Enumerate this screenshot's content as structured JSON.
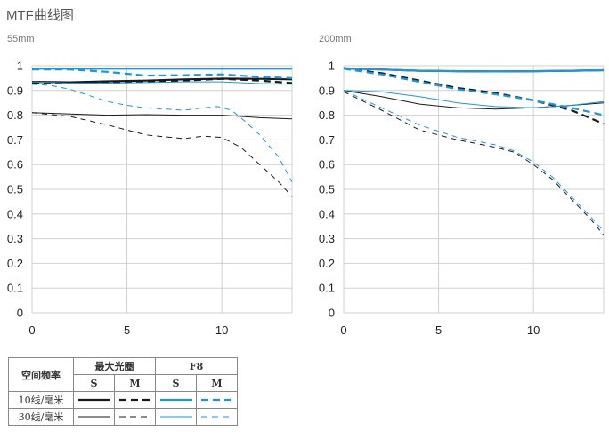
{
  "page_title": "MTF曲线图",
  "colors": {
    "black": "#1a1a1a",
    "blue": "#1e96dc",
    "grid": "#d0d0d0"
  },
  "legend": {
    "header_spatial": "空间频率",
    "header_max_aperture": "最大光圈",
    "header_f8": "F8",
    "sub_s": "S",
    "sub_m": "M",
    "row_10": "10线/毫米",
    "row_30": "30线/毫米"
  },
  "chart_data": [
    {
      "type": "line",
      "title": "55mm",
      "xlim": [
        0,
        13.7
      ],
      "ylim": [
        0,
        1
      ],
      "xticks": [
        0,
        5,
        10
      ],
      "yticks": [
        0,
        0.1,
        0.2,
        0.3,
        0.4,
        0.5,
        0.6,
        0.7,
        0.8,
        0.9,
        1
      ],
      "ytick_labels": [
        "0",
        "0.1",
        "0.2",
        "0.3",
        "0.4",
        "0.5",
        "0.6",
        "0.7",
        "0.8",
        "0.9",
        "1"
      ],
      "grid": true,
      "series": [
        {
          "aperture": "max",
          "freq": 10,
          "dir": "S",
          "color": "#1a1a1a",
          "style": "solid",
          "weight": "thick",
          "x": [
            0,
            2,
            4,
            6,
            8,
            10,
            12,
            13.7
          ],
          "y": [
            0.935,
            0.933,
            0.937,
            0.94,
            0.945,
            0.948,
            0.947,
            0.945
          ]
        },
        {
          "aperture": "max",
          "freq": 10,
          "dir": "M",
          "color": "#1a1a1a",
          "style": "dashed",
          "weight": "thick",
          "x": [
            0,
            2,
            4,
            6,
            8,
            10,
            12,
            13.7
          ],
          "y": [
            0.93,
            0.93,
            0.932,
            0.935,
            0.94,
            0.947,
            0.94,
            0.93
          ]
        },
        {
          "aperture": "max",
          "freq": 30,
          "dir": "S",
          "color": "#1a1a1a",
          "style": "solid",
          "weight": "thin",
          "x": [
            0,
            2,
            4,
            6,
            8,
            10,
            12,
            13.7
          ],
          "y": [
            0.81,
            0.805,
            0.8,
            0.802,
            0.8,
            0.8,
            0.79,
            0.785
          ]
        },
        {
          "aperture": "max",
          "freq": 30,
          "dir": "M",
          "color": "#1a1a1a",
          "style": "dashed",
          "weight": "thin",
          "x": [
            0,
            2,
            4,
            6,
            8,
            9,
            10,
            11,
            12,
            13,
            13.7
          ],
          "y": [
            0.81,
            0.795,
            0.76,
            0.72,
            0.705,
            0.715,
            0.71,
            0.67,
            0.6,
            0.53,
            0.47
          ]
        },
        {
          "aperture": "F8",
          "freq": 10,
          "dir": "S",
          "color": "#1e96dc",
          "style": "solid",
          "weight": "thick",
          "x": [
            0,
            2,
            4,
            6,
            8,
            10,
            12,
            13.7
          ],
          "y": [
            0.988,
            0.988,
            0.988,
            0.988,
            0.988,
            0.988,
            0.988,
            0.988
          ]
        },
        {
          "aperture": "F8",
          "freq": 10,
          "dir": "M",
          "color": "#1e96dc",
          "style": "dashed",
          "weight": "thick",
          "x": [
            0,
            2,
            4,
            6,
            8,
            10,
            12,
            13.7
          ],
          "y": [
            0.985,
            0.985,
            0.975,
            0.96,
            0.962,
            0.965,
            0.955,
            0.95
          ]
        },
        {
          "aperture": "F8",
          "freq": 30,
          "dir": "S",
          "color": "#1e96dc",
          "style": "solid",
          "weight": "thin",
          "x": [
            0,
            2,
            4,
            6,
            8,
            10,
            12,
            13.7
          ],
          "y": [
            0.935,
            0.93,
            0.93,
            0.932,
            0.935,
            0.935,
            0.928,
            0.925
          ]
        },
        {
          "aperture": "F8",
          "freq": 30,
          "dir": "M",
          "color": "#1e96dc",
          "style": "dashed",
          "weight": "thin",
          "x": [
            0,
            1,
            2,
            3,
            4,
            5,
            6,
            7,
            8,
            9,
            9.8,
            10.5,
            11,
            12,
            13,
            13.7
          ],
          "y": [
            0.925,
            0.92,
            0.905,
            0.88,
            0.855,
            0.84,
            0.83,
            0.825,
            0.82,
            0.83,
            0.835,
            0.82,
            0.79,
            0.72,
            0.63,
            0.53
          ]
        }
      ]
    },
    {
      "type": "line",
      "title": "200mm",
      "xlim": [
        0,
        13.7
      ],
      "ylim": [
        0,
        1
      ],
      "xticks": [
        0,
        5,
        10
      ],
      "yticks": [
        0,
        0.1,
        0.2,
        0.3,
        0.4,
        0.5,
        0.6,
        0.7,
        0.8,
        0.9,
        1
      ],
      "ytick_labels": [
        "0",
        "0.1",
        "0.2",
        "0.3",
        "0.4",
        "0.5",
        "0.6",
        "0.7",
        "0.8",
        "0.9",
        "1"
      ],
      "grid": true,
      "series": [
        {
          "aperture": "max",
          "freq": 10,
          "dir": "S",
          "color": "#1a1a1a",
          "style": "solid",
          "weight": "thick",
          "x": [
            0,
            2,
            4,
            6,
            8,
            10,
            12,
            13.7
          ],
          "y": [
            0.99,
            0.985,
            0.98,
            0.978,
            0.977,
            0.978,
            0.98,
            0.982
          ]
        },
        {
          "aperture": "max",
          "freq": 10,
          "dir": "M",
          "color": "#1a1a1a",
          "style": "dashed",
          "weight": "thick",
          "x": [
            0,
            2,
            4,
            6,
            8,
            10,
            12,
            13.7
          ],
          "y": [
            0.99,
            0.97,
            0.94,
            0.91,
            0.89,
            0.86,
            0.82,
            0.765
          ]
        },
        {
          "aperture": "max",
          "freq": 30,
          "dir": "S",
          "color": "#1a1a1a",
          "style": "solid",
          "weight": "thin",
          "x": [
            0,
            2,
            4,
            6,
            8,
            10,
            12,
            13.7
          ],
          "y": [
            0.9,
            0.875,
            0.845,
            0.83,
            0.825,
            0.83,
            0.84,
            0.85
          ]
        },
        {
          "aperture": "max",
          "freq": 30,
          "dir": "M",
          "color": "#1a1a1a",
          "style": "dashed",
          "weight": "thin",
          "x": [
            0,
            2,
            4,
            6,
            8,
            9,
            10,
            11,
            12,
            13,
            13.7
          ],
          "y": [
            0.895,
            0.82,
            0.74,
            0.7,
            0.67,
            0.65,
            0.6,
            0.54,
            0.46,
            0.38,
            0.315
          ]
        },
        {
          "aperture": "F8",
          "freq": 10,
          "dir": "S",
          "color": "#1e96dc",
          "style": "solid",
          "weight": "thick",
          "x": [
            0,
            2,
            4,
            6,
            8,
            10,
            12,
            13.7
          ],
          "y": [
            0.988,
            0.985,
            0.98,
            0.978,
            0.977,
            0.978,
            0.98,
            0.982
          ]
        },
        {
          "aperture": "F8",
          "freq": 10,
          "dir": "M",
          "color": "#1e96dc",
          "style": "dashed",
          "weight": "thick",
          "x": [
            0,
            2,
            4,
            6,
            8,
            10,
            12,
            13.7
          ],
          "y": [
            0.988,
            0.965,
            0.935,
            0.905,
            0.885,
            0.86,
            0.83,
            0.8
          ]
        },
        {
          "aperture": "F8",
          "freq": 30,
          "dir": "S",
          "color": "#1e96dc",
          "style": "solid",
          "weight": "thin",
          "x": [
            0,
            2,
            4,
            6,
            8,
            10,
            12,
            13.7
          ],
          "y": [
            0.9,
            0.895,
            0.875,
            0.85,
            0.835,
            0.83,
            0.84,
            0.855
          ]
        },
        {
          "aperture": "F8",
          "freq": 30,
          "dir": "M",
          "color": "#1e96dc",
          "style": "dashed",
          "weight": "thin",
          "x": [
            0,
            2,
            4,
            6,
            8,
            9,
            10,
            11,
            12,
            13,
            13.7
          ],
          "y": [
            0.9,
            0.83,
            0.76,
            0.71,
            0.68,
            0.655,
            0.61,
            0.55,
            0.47,
            0.39,
            0.33
          ]
        }
      ]
    }
  ]
}
